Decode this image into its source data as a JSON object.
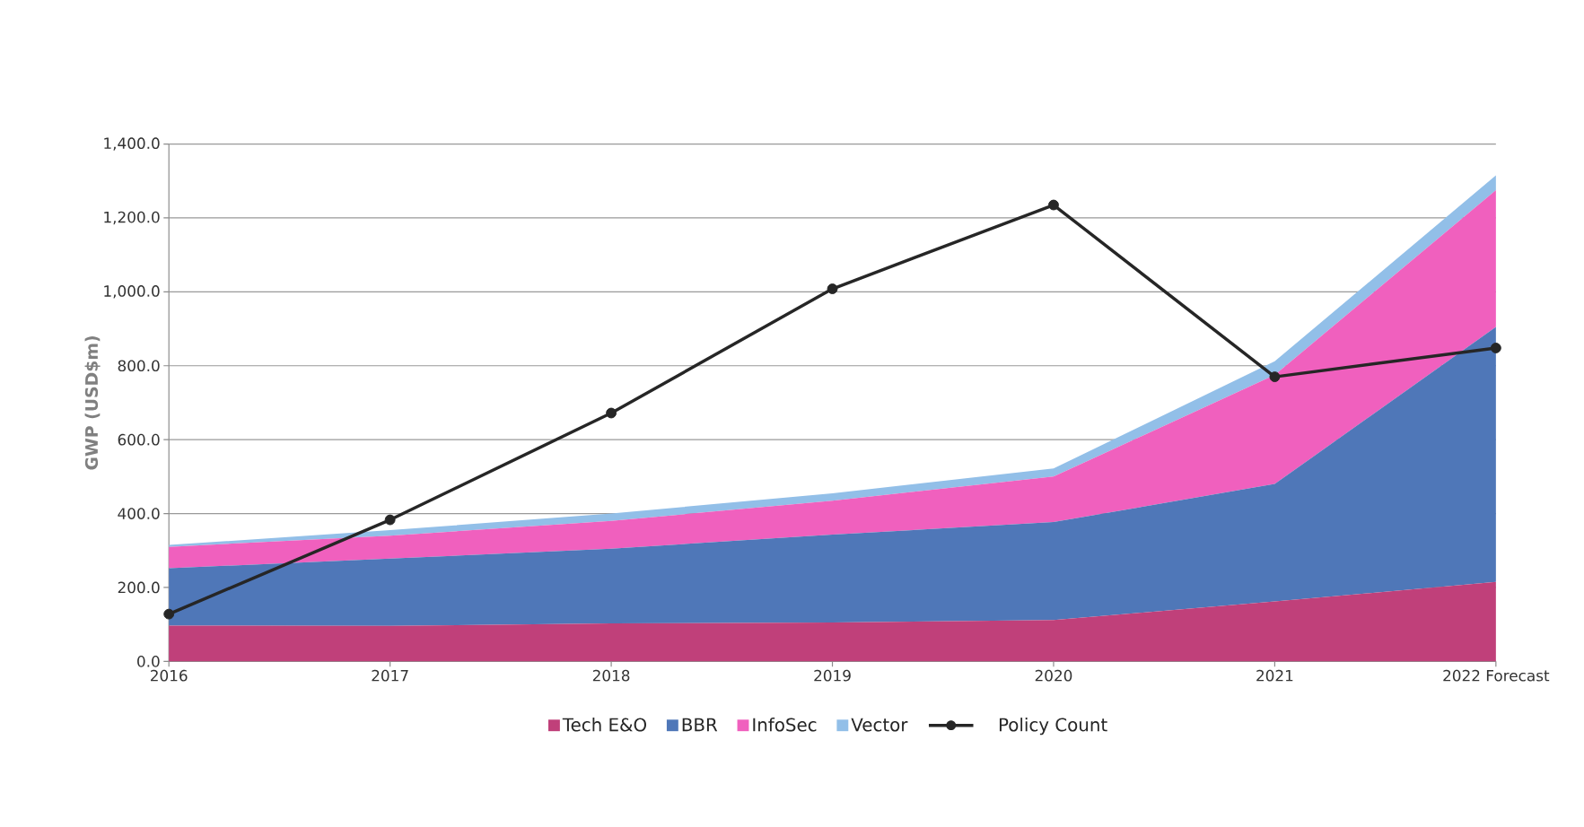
{
  "chart_data": {
    "type": "area",
    "stacked": true,
    "ylabel": "GWP (USD$m)",
    "categories": [
      "2016",
      "2017",
      "2018",
      "2019",
      "2020",
      "2021",
      "2022 Forecast"
    ],
    "series": [
      {
        "name": "Tech E&O",
        "color": "#c0407a",
        "values": [
          97,
          96,
          103,
          105,
          112,
          162,
          215
        ]
      },
      {
        "name": "BBR",
        "color": "#4f77b8",
        "values": [
          155,
          182,
          202,
          238,
          265,
          318,
          690
        ]
      },
      {
        "name": "InfoSec",
        "color": "#f060be",
        "values": [
          58,
          62,
          75,
          92,
          123,
          295,
          370
        ]
      },
      {
        "name": "Vector",
        "color": "#92bfe8",
        "values": [
          5,
          15,
          20,
          20,
          22,
          37,
          40
        ]
      },
      {
        "name": "Policy Count",
        "type": "line",
        "color": "#262626",
        "marker": "circle",
        "values": [
          128,
          383,
          672,
          1008,
          1235,
          770,
          848
        ]
      }
    ],
    "ylim": [
      0,
      1400
    ],
    "yticks": [
      {
        "value": 0,
        "label": "0.0"
      },
      {
        "value": 200,
        "label": "200.0"
      },
      {
        "value": 400,
        "label": "400.0"
      },
      {
        "value": 600,
        "label": "600.0"
      },
      {
        "value": 800,
        "label": "800.0"
      },
      {
        "value": 1000,
        "label": "1,000.0"
      },
      {
        "value": 1200,
        "label": "1,200.0"
      },
      {
        "value": 1400,
        "label": "1,400.0"
      }
    ],
    "grid": "y",
    "legend": "bottom"
  }
}
